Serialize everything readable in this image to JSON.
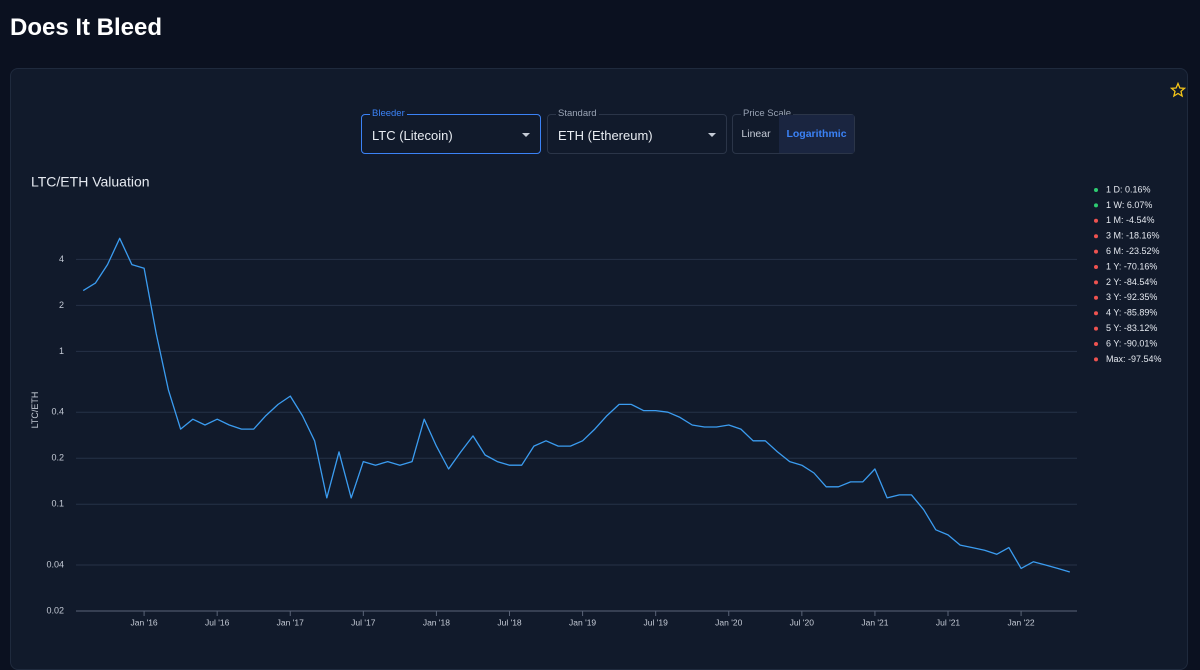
{
  "header": {
    "title": "Does It Bleed"
  },
  "controls": {
    "bleeder": {
      "label": "Bleeder",
      "value": "LTC (Litecoin)"
    },
    "standard": {
      "label": "Standard",
      "value": "ETH (Ethereum)"
    },
    "price_scale": {
      "label": "Price Scale",
      "options": [
        "Linear",
        "Logarithmic"
      ]
    }
  },
  "chart_data": {
    "type": "line",
    "title": "LTC/ETH Valuation",
    "y_label": "LTC/ETH",
    "color": "#3b9cf0",
    "log_scale": true,
    "grid": true,
    "x": [
      "2015-08",
      "2015-09",
      "2015-10",
      "2015-11",
      "2015-12",
      "2016-01",
      "2016-02",
      "2016-03",
      "2016-04",
      "2016-05",
      "2016-06",
      "2016-07",
      "2016-08",
      "2016-09",
      "2016-10",
      "2016-11",
      "2016-12",
      "2017-01",
      "2017-02",
      "2017-03",
      "2017-04",
      "2017-05",
      "2017-06",
      "2017-07",
      "2017-08",
      "2017-09",
      "2017-10",
      "2017-11",
      "2017-12",
      "2018-01",
      "2018-02",
      "2018-03",
      "2018-04",
      "2018-05",
      "2018-06",
      "2018-07",
      "2018-08",
      "2018-09",
      "2018-10",
      "2018-11",
      "2018-12",
      "2019-01",
      "2019-02",
      "2019-03",
      "2019-04",
      "2019-05",
      "2019-06",
      "2019-07",
      "2019-08",
      "2019-09",
      "2019-10",
      "2019-11",
      "2019-12",
      "2020-01",
      "2020-02",
      "2020-03",
      "2020-04",
      "2020-05",
      "2020-06",
      "2020-07",
      "2020-08",
      "2020-09",
      "2020-10",
      "2020-11",
      "2020-12",
      "2021-01",
      "2021-02",
      "2021-03",
      "2021-04",
      "2021-05",
      "2021-06",
      "2021-07",
      "2021-08",
      "2021-09",
      "2021-10",
      "2021-11",
      "2021-12",
      "2022-01",
      "2022-02",
      "2022-03",
      "2022-04",
      "2022-05"
    ],
    "values": [
      2.5,
      2.8,
      3.7,
      5.5,
      3.7,
      3.5,
      1.3,
      0.56,
      0.31,
      0.36,
      0.33,
      0.36,
      0.33,
      0.31,
      0.31,
      0.38,
      0.45,
      0.51,
      0.38,
      0.26,
      0.11,
      0.22,
      0.11,
      0.19,
      0.18,
      0.19,
      0.18,
      0.19,
      0.36,
      0.24,
      0.17,
      0.22,
      0.28,
      0.21,
      0.19,
      0.18,
      0.18,
      0.24,
      0.26,
      0.24,
      0.24,
      0.26,
      0.31,
      0.38,
      0.45,
      0.45,
      0.41,
      0.41,
      0.4,
      0.37,
      0.33,
      0.32,
      0.32,
      0.33,
      0.31,
      0.26,
      0.26,
      0.22,
      0.19,
      0.18,
      0.16,
      0.13,
      0.13,
      0.14,
      0.14,
      0.17,
      0.11,
      0.115,
      0.115,
      0.092,
      0.068,
      0.063,
      0.054,
      0.052,
      0.05,
      0.047,
      0.052,
      0.038,
      0.042,
      0.04,
      0.038,
      0.036
    ],
    "xlim": [
      "2015-07",
      "2022-06"
    ],
    "xticks": [
      {
        "value": "2016-01",
        "label": "Jan '16"
      },
      {
        "value": "2016-07",
        "label": "Jul '16"
      },
      {
        "value": "2017-01",
        "label": "Jan '17"
      },
      {
        "value": "2017-07",
        "label": "Jul '17"
      },
      {
        "value": "2018-01",
        "label": "Jan '18"
      },
      {
        "value": "2018-07",
        "label": "Jul '18"
      },
      {
        "value": "2019-01",
        "label": "Jan '19"
      },
      {
        "value": "2019-07",
        "label": "Jul '19"
      },
      {
        "value": "2020-01",
        "label": "Jan '20"
      },
      {
        "value": "2020-07",
        "label": "Jul '20"
      },
      {
        "value": "2021-01",
        "label": "Jan '21"
      },
      {
        "value": "2021-07",
        "label": "Jul '21"
      },
      {
        "value": "2022-01",
        "label": "Jan '22"
      }
    ],
    "ylim": [
      0.02,
      8
    ],
    "yticks": [
      4,
      2,
      1,
      0.4,
      0.2,
      0.1,
      0.04,
      0.02
    ]
  },
  "stats": [
    {
      "text": "1 D: 0.16%",
      "color": "#2ecc71"
    },
    {
      "text": "1 W: 6.07%",
      "color": "#2ecc71"
    },
    {
      "text": "1 M: -4.54%",
      "color": "#ef5350"
    },
    {
      "text": "3 M: -18.16%",
      "color": "#ef5350"
    },
    {
      "text": "6 M: -23.52%",
      "color": "#ef5350"
    },
    {
      "text": "1 Y: -70.16%",
      "color": "#ef5350"
    },
    {
      "text": "2 Y: -84.54%",
      "color": "#ef5350"
    },
    {
      "text": "3 Y: -92.35%",
      "color": "#ef5350"
    },
    {
      "text": "4 Y: -85.89%",
      "color": "#ef5350"
    },
    {
      "text": "5 Y: -83.12%",
      "color": "#ef5350"
    },
    {
      "text": "6 Y: -90.01%",
      "color": "#ef5350"
    },
    {
      "text": "Max: -97.54%",
      "color": "#ef5350"
    }
  ]
}
